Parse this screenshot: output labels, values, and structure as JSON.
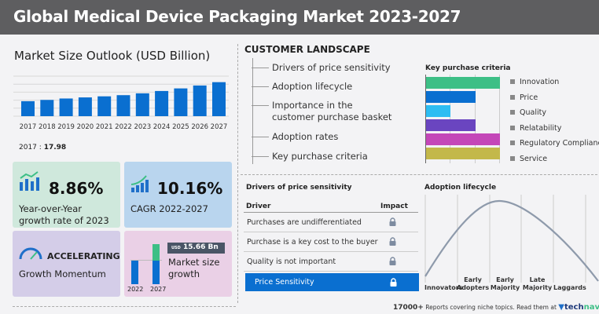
{
  "header": {
    "title": "Global Medical Device Packaging Market 2023-2027"
  },
  "market": {
    "title": "Market Size Outlook (USD Billion)",
    "note_year": "2017 :",
    "note_value": "17.98"
  },
  "chart_data": {
    "type": "bar",
    "categories": [
      "2017",
      "2018",
      "2019",
      "2020",
      "2021",
      "2022",
      "2023",
      "2024",
      "2025",
      "2026",
      "2027"
    ],
    "values": [
      17.98,
      19.5,
      21.2,
      22.5,
      23.8,
      25.2,
      27.4,
      30.2,
      33.3,
      36.8,
      40.8
    ],
    "ylim": [
      0,
      48
    ],
    "color": "#0a6fd0"
  },
  "tiles": {
    "yoy": {
      "value": "8.86%",
      "label_line1": "Year-over-Year",
      "label_line2": "growth rate of 2023",
      "bg": "#cfe8dc"
    },
    "cagr": {
      "value": "10.16%",
      "label": "CAGR 2022-2027",
      "bg": "#b9d5ee"
    },
    "momentum": {
      "value": "ACCELERATING",
      "label": "Growth Momentum",
      "bg": "#d4cde8"
    },
    "growth": {
      "currency": "USD",
      "value": "15.66 Bn",
      "label_line1": "Market size",
      "label_line2": "growth",
      "year_start": "2022",
      "year_end": "2027",
      "bg": "#ead0e6"
    }
  },
  "landscape": {
    "title": "CUSTOMER LANDSCAPE",
    "items": [
      "Drivers of price sensitivity",
      "Adoption lifecycle",
      "Importance in the customer purchase basket",
      "Adoption rates",
      "Key purchase criteria"
    ]
  },
  "kpc": {
    "title": "Key purchase criteria",
    "criteria": [
      {
        "label": "Innovation",
        "level": 1.0,
        "color": "#3dbf86"
      },
      {
        "label": "Price",
        "level": 0.67,
        "color": "#0a6fd0"
      },
      {
        "label": "Quality",
        "level": 0.33,
        "color": "#2dbdf2"
      },
      {
        "label": "Relatability",
        "level": 0.67,
        "color": "#6a45c0"
      },
      {
        "label": "Regulatory Compliance",
        "level": 1.0,
        "color": "#c447b8"
      },
      {
        "label": "Service",
        "level": 1.0,
        "color": "#c3b84a"
      }
    ]
  },
  "drivers": {
    "title": "Drivers of price sensitivity",
    "col_driver": "Driver",
    "col_impact": "Impact",
    "rows": [
      "Purchases are undifferentiated",
      "Purchase is a key cost to the buyer",
      "Quality is not important"
    ],
    "highlight": "Price Sensitivity"
  },
  "adoption": {
    "title": "Adoption lifecycle",
    "stages": [
      [
        "",
        "Innovators"
      ],
      [
        "Early",
        "Adopters"
      ],
      [
        "Early",
        "Majority"
      ],
      [
        "Late",
        "Majority"
      ],
      [
        "",
        "Laggards"
      ]
    ]
  },
  "footer": {
    "count": "17000+",
    "text": "Reports covering niche topics. Read them at",
    "brand_a": "tech",
    "brand_b": "navio"
  }
}
